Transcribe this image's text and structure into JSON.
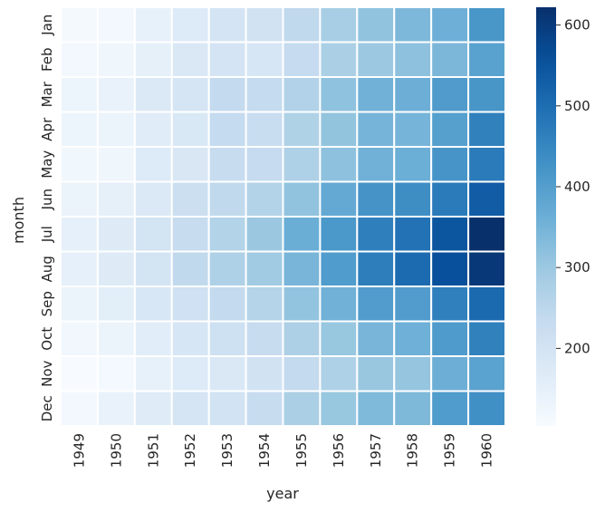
{
  "chart_data": {
    "type": "heatmap",
    "title": "",
    "xlabel": "year",
    "ylabel": "month",
    "x": [
      "1949",
      "1950",
      "1951",
      "1952",
      "1953",
      "1954",
      "1955",
      "1956",
      "1957",
      "1958",
      "1959",
      "1960"
    ],
    "y": [
      "Jan",
      "Feb",
      "Mar",
      "Apr",
      "May",
      "Jun",
      "Jul",
      "Aug",
      "Sep",
      "Oct",
      "Nov",
      "Dec"
    ],
    "values": [
      [
        112,
        115,
        145,
        171,
        196,
        204,
        242,
        284,
        315,
        340,
        360,
        417
      ],
      [
        118,
        126,
        150,
        180,
        196,
        188,
        233,
        277,
        301,
        318,
        342,
        391
      ],
      [
        132,
        141,
        178,
        193,
        236,
        235,
        267,
        317,
        356,
        362,
        406,
        419
      ],
      [
        129,
        135,
        163,
        181,
        235,
        227,
        269,
        313,
        348,
        348,
        396,
        461
      ],
      [
        121,
        125,
        172,
        183,
        229,
        234,
        270,
        318,
        355,
        363,
        420,
        472
      ],
      [
        135,
        149,
        178,
        218,
        243,
        264,
        315,
        374,
        422,
        435,
        472,
        535
      ],
      [
        148,
        170,
        199,
        230,
        264,
        302,
        364,
        413,
        465,
        491,
        548,
        622
      ],
      [
        148,
        170,
        199,
        242,
        272,
        293,
        347,
        405,
        467,
        505,
        559,
        606
      ],
      [
        136,
        158,
        184,
        209,
        237,
        259,
        312,
        355,
        404,
        404,
        463,
        508
      ],
      [
        119,
        133,
        162,
        191,
        211,
        229,
        274,
        306,
        347,
        359,
        407,
        461
      ],
      [
        104,
        114,
        146,
        172,
        180,
        203,
        237,
        271,
        305,
        310,
        362,
        390
      ],
      [
        118,
        140,
        166,
        194,
        201,
        229,
        278,
        306,
        336,
        337,
        405,
        432
      ]
    ],
    "colormap": "Blues",
    "colorbar": {
      "range": [
        104,
        622
      ],
      "ticks": [
        200,
        300,
        400,
        500,
        600
      ],
      "tick_labels": [
        "200",
        "300",
        "400",
        "500",
        "600"
      ]
    },
    "cell_border_color": "#ffffff",
    "grid": false,
    "legend": "colorbar-right"
  }
}
